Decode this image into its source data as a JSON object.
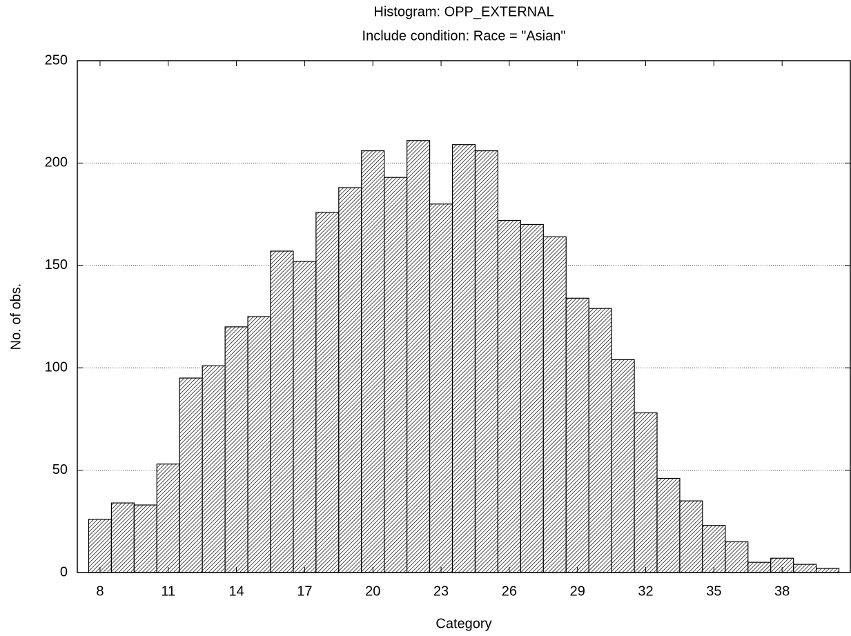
{
  "chart_data": {
    "type": "histogram",
    "title": "Histogram: OPP_EXTERNAL",
    "subtitle": "Include condition: Race = \"Asian\"",
    "xlabel": "Category",
    "ylabel": "No. of obs.",
    "bins": [
      7.5,
      8.5,
      9.5,
      10.5,
      11.5,
      12.5,
      13.5,
      14.5,
      15.5,
      16.5,
      17.5,
      18.5,
      19.5,
      20.5,
      21.5,
      22.5,
      23.5,
      24.5,
      25.5,
      26.5,
      27.5,
      28.5,
      29.5,
      30.5,
      31.5,
      32.5,
      33.5,
      34.5,
      35.5,
      36.5,
      37.5,
      38.5,
      39.5,
      40.5
    ],
    "values": [
      26,
      34,
      33,
      53,
      95,
      101,
      120,
      125,
      157,
      152,
      176,
      188,
      206,
      193,
      211,
      180,
      209,
      206,
      172,
      170,
      164,
      134,
      129,
      104,
      78,
      46,
      35,
      23,
      15,
      5,
      7,
      4,
      2
    ],
    "color": "#000000",
    "xlim": [
      7,
      41
    ],
    "xticks": [
      8,
      11,
      14,
      17,
      20,
      23,
      26,
      29,
      32,
      35,
      38
    ],
    "ylim": [
      0,
      250
    ],
    "yticks": [
      0,
      50,
      100,
      150,
      200,
      250
    ],
    "grid": true
  }
}
